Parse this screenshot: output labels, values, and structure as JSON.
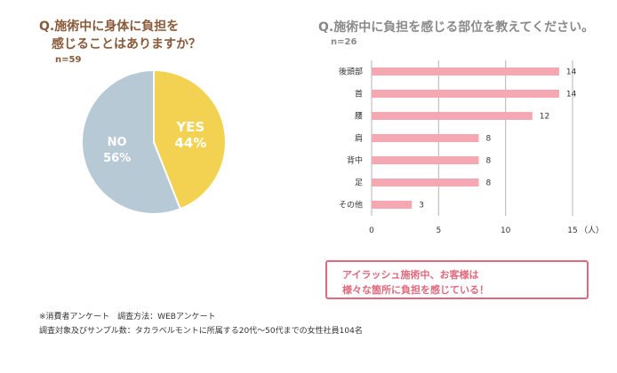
{
  "left_chart": {
    "title_line1": "Q.施術中に身体に負担を",
    "title_line2": "感じることはありますか？",
    "n_label": "n=59"
  },
  "right_chart": {
    "title": "Q.施術中に負担を感じる部位を教えてください。",
    "n_label": "n=26",
    "unit_label": "（人）"
  },
  "callout": {
    "line1": "アイラッシュ施術中、お客様は",
    "line2": "様々な箇所に負担を感じている！"
  },
  "footnotes": {
    "line1": "※消費者アンケート　調査方法：WEBアンケート",
    "line2": "調査対象及びサンプル数：タカラベルモントに所属する20代～50代までの女性社員104名"
  },
  "colors": {
    "yes": "#f2d250",
    "no": "#b8c9d6",
    "bar": "#f5a8b1",
    "accent": "#e06a7d",
    "brown": "#8a5a3a"
  },
  "chart_data": [
    {
      "type": "pie",
      "title": "Q.施術中に身体に負担を感じることはありますか？",
      "slices": [
        {
          "label": "YES",
          "pct_label": "44%",
          "value": 44
        },
        {
          "label": "NO",
          "pct_label": "56%",
          "value": 56
        }
      ]
    },
    {
      "type": "bar",
      "orientation": "horizontal",
      "title": "Q.施術中に負担を感じる部位を教えてください。",
      "categories": [
        "後頭部",
        "首",
        "腰",
        "肩",
        "背中",
        "足",
        "その他"
      ],
      "values": [
        14,
        14,
        12,
        8,
        8,
        8,
        3
      ],
      "xticks": [
        0,
        5,
        10,
        15
      ],
      "xlim": [
        0,
        15
      ],
      "grid": true
    }
  ]
}
